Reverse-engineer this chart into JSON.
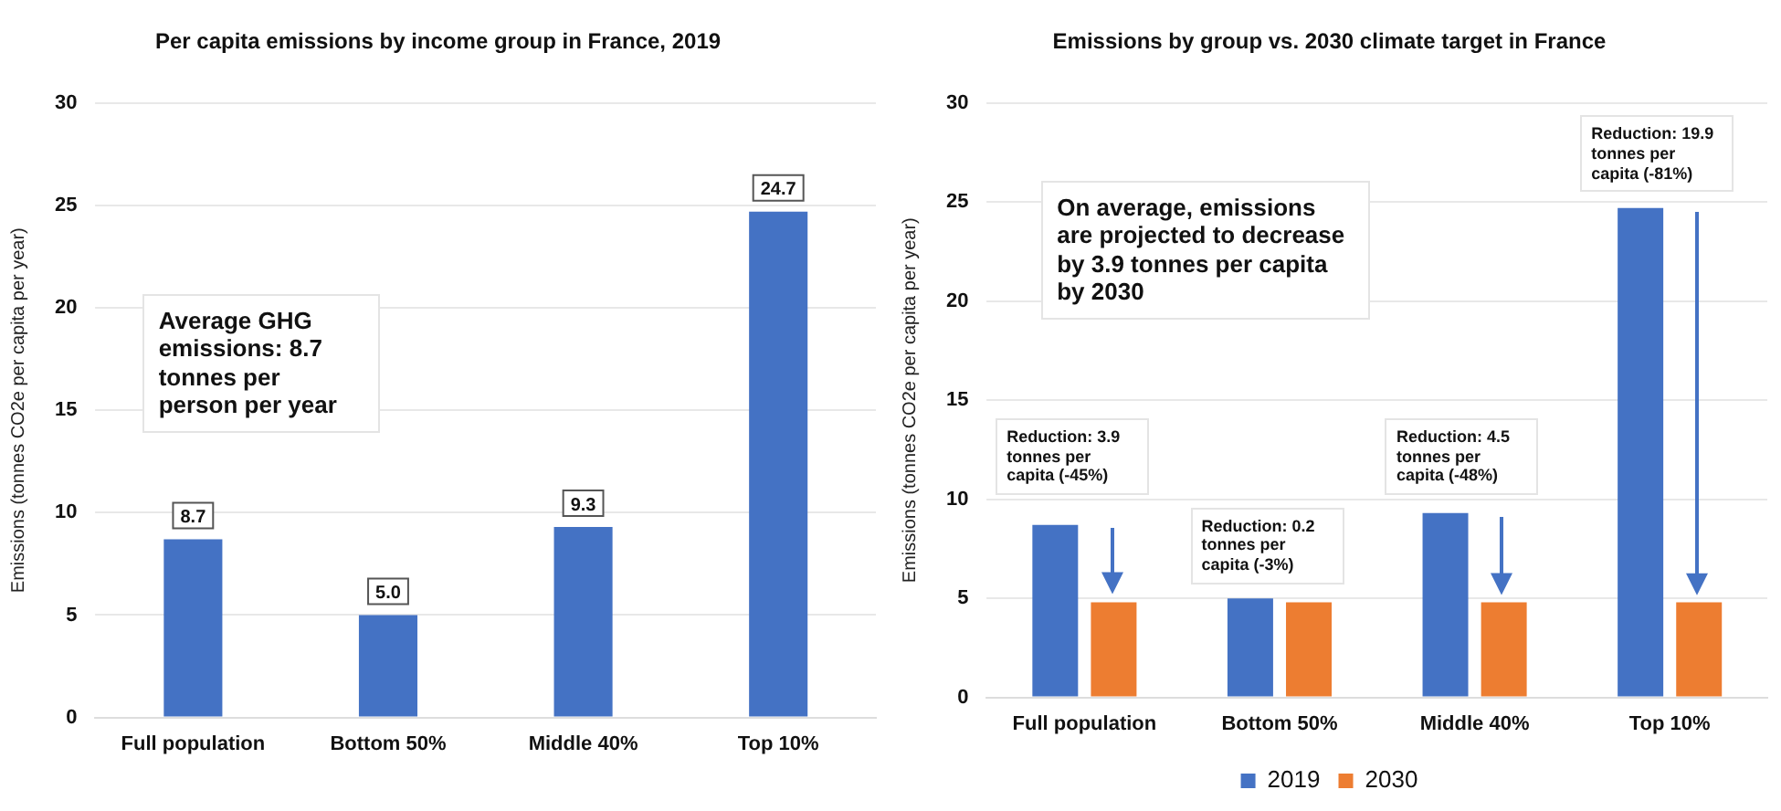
{
  "chart_data": [
    {
      "type": "bar",
      "title": "Per capita emissions by income group in France, 2019",
      "ylabel": "Emissions (tonnes CO2e per capita per year)",
      "categories": [
        "Full population",
        "Bottom 50%",
        "Middle 40%",
        "Top 10%"
      ],
      "series": [
        {
          "color": "#4472c4",
          "values": [
            8.7,
            5.0,
            9.3,
            24.7
          ]
        }
      ],
      "value_labels": [
        "8.7",
        "5.0",
        "9.3",
        "24.7"
      ],
      "ylim": [
        0,
        30
      ],
      "yticks": [
        0,
        5,
        10,
        15,
        20,
        25,
        30
      ],
      "grid": "y",
      "legend": false,
      "annotations": [
        "Average GHG emissions: 8.7 tonnes per person per year"
      ]
    },
    {
      "type": "bar",
      "title": "Emissions by group vs. 2030 climate target in France",
      "ylabel": "Emissions (tonnes CO2e per capita per year)",
      "categories": [
        "Full population",
        "Bottom 50%",
        "Middle 40%",
        "Top 10%"
      ],
      "series": [
        {
          "name": "2019",
          "color": "#4472c4",
          "values": [
            8.7,
            5.0,
            9.3,
            24.7
          ]
        },
        {
          "name": "2030",
          "color": "#ed7d31",
          "values": [
            4.8,
            4.8,
            4.8,
            4.8
          ]
        }
      ],
      "ylim": [
        0,
        30
      ],
      "yticks": [
        0,
        5,
        10,
        15,
        20,
        25,
        30
      ],
      "grid": "y",
      "legend": "bottom",
      "annotations": [
        "On average, emissions are projected to decrease by 3.9 tonnes per capita by 2030",
        "Reduction: 3.9 tonnes per capita (-45%)",
        "Reduction: 0.2 tonnes per capita (-3%)",
        "Reduction: 4.5 tonnes per capita (-48%)",
        "Reduction: 19.9 tonnes per capita (-81%)"
      ]
    }
  ]
}
